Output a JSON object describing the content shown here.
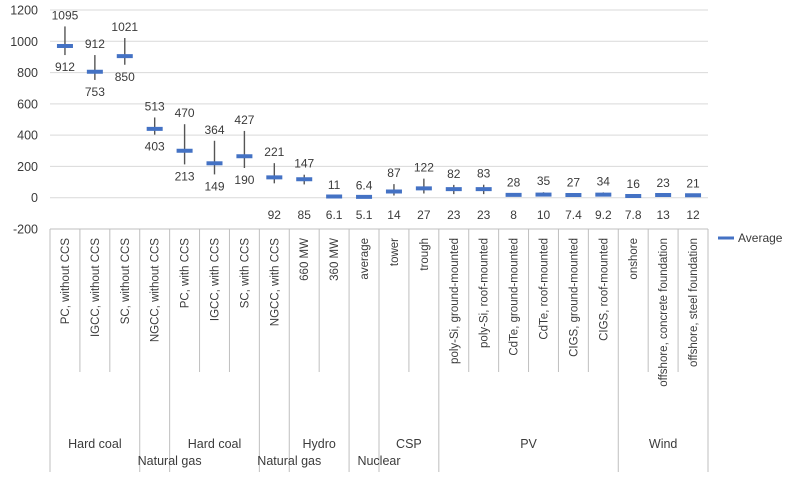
{
  "chart_data": {
    "type": "range",
    "title": "",
    "xlabel": "",
    "ylabel": "",
    "ylim": [
      -200,
      1200
    ],
    "yticks": [
      -200,
      0,
      200,
      400,
      600,
      800,
      1000,
      1200
    ],
    "grid": true,
    "legend": {
      "position": "right",
      "entries": [
        {
          "name": "Average",
          "color": "#4472c4"
        }
      ]
    },
    "categories": [
      {
        "label": "PC, without CCS",
        "max": 1095,
        "min": 912,
        "avg": 970,
        "max_label": "1095",
        "min_label": "912"
      },
      {
        "label": "IGCC, without CCS",
        "max": 912,
        "min": 753,
        "avg": 805,
        "max_label": "912",
        "min_label": "753"
      },
      {
        "label": "SC, without CCS",
        "max": 1021,
        "min": 850,
        "avg": 905,
        "max_label": "1021",
        "min_label": "850"
      },
      {
        "label": "NGCC, without CCS",
        "max": 513,
        "min": 403,
        "avg": 440,
        "max_label": "513",
        "min_label": "403"
      },
      {
        "label": "PC, with CCS",
        "max": 470,
        "min": 213,
        "avg": 300,
        "max_label": "470",
        "min_label": "213"
      },
      {
        "label": "IGCC, with CCS",
        "max": 364,
        "min": 149,
        "avg": 220,
        "max_label": "364",
        "min_label": "149"
      },
      {
        "label": "SC, with CCS",
        "max": 427,
        "min": 190,
        "avg": 265,
        "max_label": "427",
        "min_label": "190"
      },
      {
        "label": "NGCC, with CCS",
        "max": 221,
        "min": 92,
        "avg": 130,
        "max_label": "221",
        "min_label": "92"
      },
      {
        "label": "660 MW",
        "max": 147,
        "min": 85,
        "avg": 118,
        "max_label": "147",
        "min_label": "85"
      },
      {
        "label": "360 MW",
        "max": 11,
        "min": 6.1,
        "avg": 8,
        "max_label": "11",
        "min_label": "6.1"
      },
      {
        "label": "average",
        "max": 6.4,
        "min": 5.1,
        "avg": 5.7,
        "max_label": "6.4",
        "min_label": "5.1"
      },
      {
        "label": "tower",
        "max": 87,
        "min": 14,
        "avg": 40,
        "max_label": "87",
        "min_label": "14"
      },
      {
        "label": "trough",
        "max": 122,
        "min": 27,
        "avg": 60,
        "max_label": "122",
        "min_label": "27"
      },
      {
        "label": "poly-Si, ground-mounted",
        "max": 82,
        "min": 23,
        "avg": 55,
        "max_label": "82",
        "min_label": "23"
      },
      {
        "label": "poly-Si, roof-mounted",
        "max": 83,
        "min": 23,
        "avg": 55,
        "max_label": "83",
        "min_label": "23"
      },
      {
        "label": "CdTe, ground-mounted",
        "max": 28,
        "min": 8,
        "avg": 18,
        "max_label": "28",
        "min_label": "8"
      },
      {
        "label": "CdTe, roof-mounted",
        "max": 35,
        "min": 10,
        "avg": 20,
        "max_label": "35",
        "min_label": "10"
      },
      {
        "label": "CIGS, ground-mounted",
        "max": 27,
        "min": 7.4,
        "avg": 17,
        "max_label": "27",
        "min_label": "7.4"
      },
      {
        "label": "CIGS, roof-mounted",
        "max": 34,
        "min": 9.2,
        "avg": 20,
        "max_label": "34",
        "min_label": "9.2"
      },
      {
        "label": "onshore",
        "max": 16,
        "min": 7.8,
        "avg": 11,
        "max_label": "16",
        "min_label": "7.8"
      },
      {
        "label": "offshore, concrete foundation",
        "max": 23,
        "min": 13,
        "avg": 17,
        "max_label": "23",
        "min_label": "13"
      },
      {
        "label": "offshore, steel foundation",
        "max": 21,
        "min": 12,
        "avg": 16,
        "max_label": "21",
        "min_label": "12"
      }
    ],
    "groups": [
      {
        "label": "Hard coal",
        "start": 0,
        "end": 2,
        "row": 1
      },
      {
        "label": "Natural gas",
        "start": 3,
        "end": 3,
        "row": 2
      },
      {
        "label": "Hard coal",
        "start": 4,
        "end": 6,
        "row": 1
      },
      {
        "label": "Natural gas",
        "start": 7,
        "end": 7,
        "row": 2
      },
      {
        "label": "Hydro",
        "start": 8,
        "end": 9,
        "row": 1
      },
      {
        "label": "Nuclear",
        "start": 10,
        "end": 10,
        "row": 2
      },
      {
        "label": "CSP",
        "start": 11,
        "end": 12,
        "row": 1
      },
      {
        "label": "PV",
        "start": 13,
        "end": 18,
        "row": 1
      },
      {
        "label": "Wind",
        "start": 19,
        "end": 21,
        "row": 1
      }
    ],
    "colors": {
      "average": "#4472c4",
      "range_line": "#555555",
      "grid": "#d9d9d9",
      "axis": "#bfbfbf"
    }
  }
}
